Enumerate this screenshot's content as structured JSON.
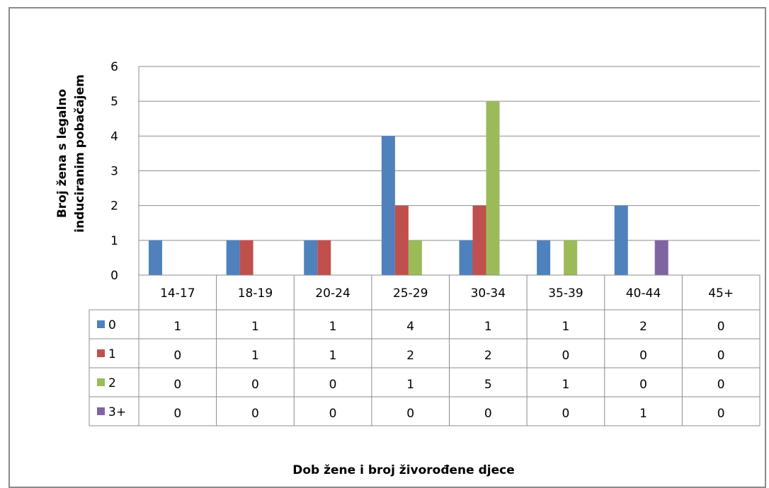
{
  "chart_data": {
    "type": "bar",
    "categories": [
      "14-17",
      "18-19",
      "20-24",
      "25-29",
      "30-34",
      "35-39",
      "40-44",
      "45+"
    ],
    "series": [
      {
        "name": "0",
        "values": [
          1,
          1,
          1,
          4,
          1,
          1,
          2,
          0
        ],
        "color": "#4F81BD"
      },
      {
        "name": "1",
        "values": [
          0,
          1,
          1,
          2,
          2,
          0,
          0,
          0
        ],
        "color": "#C0504D"
      },
      {
        "name": "2",
        "values": [
          0,
          0,
          0,
          1,
          5,
          1,
          0,
          0
        ],
        "color": "#9BBB59"
      },
      {
        "name": "3+",
        "values": [
          0,
          0,
          0,
          0,
          0,
          0,
          1,
          0
        ],
        "color": "#8064A2"
      }
    ],
    "title": "",
    "xlabel": "Dob žene i broj živorođene djece",
    "ylabel": [
      "Broj žena s legalno",
      "induciranim pobačajem"
    ],
    "ylim": [
      0,
      6
    ],
    "yticks": [
      0,
      1,
      2,
      3,
      4,
      5,
      6
    ],
    "grid": true,
    "legend": "data-table"
  }
}
